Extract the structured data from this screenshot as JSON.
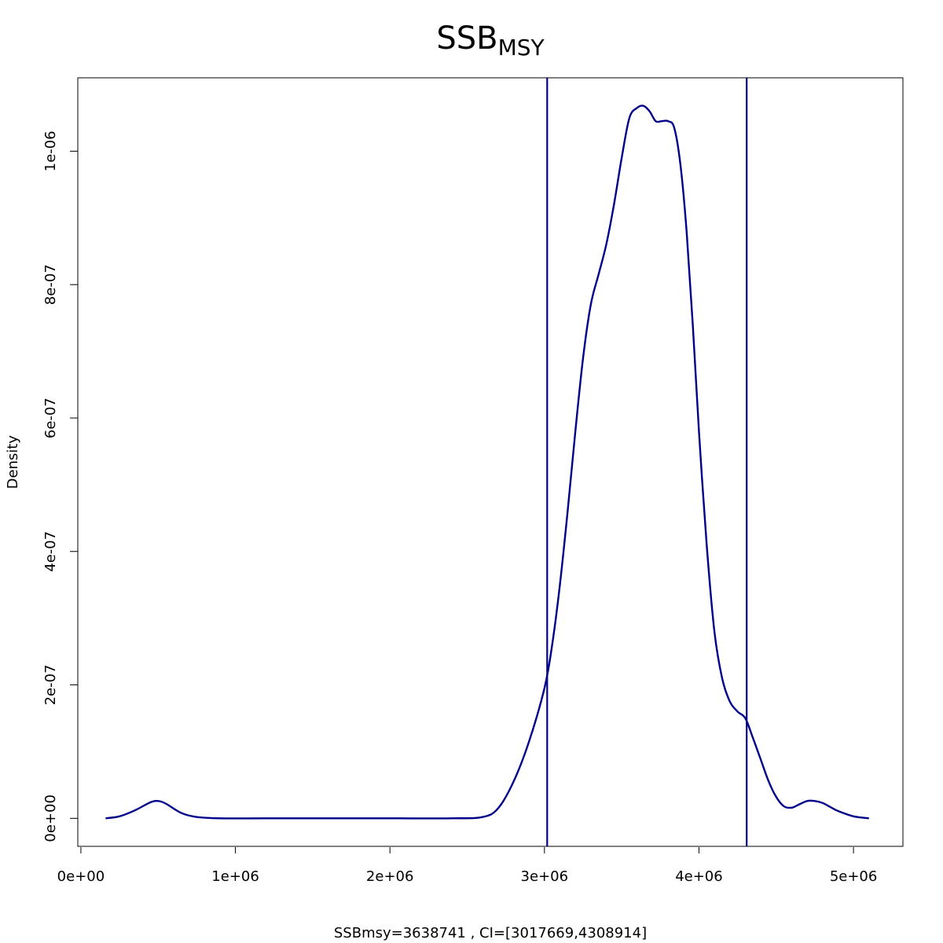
{
  "chart_data": {
    "type": "line",
    "title": "SSB",
    "title_subscript": "MSY",
    "xlabel": "SSBmsy=3638741 , CI=[3017669,4308914]",
    "ylabel": "Density",
    "xlim": [
      -20000,
      5320000
    ],
    "ylim": [
      -4.2e-08,
      1.11e-06
    ],
    "x_ticks": [
      {
        "value": 0,
        "label": "0e+00"
      },
      {
        "value": 1000000,
        "label": "1e+06"
      },
      {
        "value": 2000000,
        "label": "2e+06"
      },
      {
        "value": 3000000,
        "label": "3e+06"
      },
      {
        "value": 4000000,
        "label": "4e+06"
      },
      {
        "value": 5000000,
        "label": "5e+06"
      }
    ],
    "y_ticks": [
      {
        "value": 0,
        "label": "0e+00"
      },
      {
        "value": 2e-07,
        "label": "2e-07"
      },
      {
        "value": 4e-07,
        "label": "4e-07"
      },
      {
        "value": 6e-07,
        "label": "6e-07"
      },
      {
        "value": 8e-07,
        "label": "8e-07"
      },
      {
        "value": 1e-06,
        "label": "1e-06"
      }
    ],
    "series": [
      {
        "color": "#00008b",
        "x": [
          160000,
          250000,
          350000,
          450000,
          500000,
          550000,
          650000,
          750000,
          900000,
          1200000,
          1600000,
          2000000,
          2400000,
          2600000,
          2700000,
          2800000,
          2900000,
          3000000,
          3050000,
          3100000,
          3150000,
          3200000,
          3250000,
          3300000,
          3350000,
          3400000,
          3450000,
          3500000,
          3550000,
          3600000,
          3640000,
          3680000,
          3720000,
          3760000,
          3800000,
          3840000,
          3880000,
          3920000,
          3960000,
          4000000,
          4050000,
          4100000,
          4150000,
          4200000,
          4250000,
          4300000,
          4350000,
          4400000,
          4450000,
          4500000,
          4550000,
          4600000,
          4650000,
          4700000,
          4750000,
          4800000,
          4850000,
          4900000,
          5000000,
          5100000
        ],
        "y": [
          0,
          3e-09,
          1.2e-08,
          2.4e-08,
          2.6e-08,
          2.2e-08,
          8e-09,
          2e-09,
          0,
          0,
          0,
          0,
          0,
          2e-09,
          1.5e-08,
          5.5e-08,
          1.15e-07,
          1.95e-07,
          2.6e-07,
          3.5e-07,
          4.6e-07,
          5.8e-07,
          6.9e-07,
          7.7e-07,
          8.15e-07,
          8.6e-07,
          9.2e-07,
          9.9e-07,
          1.05e-06,
          1.065e-06,
          1.068e-06,
          1.06e-06,
          1.045e-06,
          1.045e-06,
          1.045e-06,
          1.035e-06,
          9.8e-07,
          8.8e-07,
          7.4e-07,
          5.8e-07,
          4.1e-07,
          2.8e-07,
          2.1e-07,
          1.75e-07,
          1.6e-07,
          1.5e-07,
          1.2e-07,
          8.8e-08,
          5.6e-08,
          3.2e-08,
          1.8e-08,
          1.6e-08,
          2.1e-08,
          2.6e-08,
          2.6e-08,
          2.3e-08,
          1.7e-08,
          1.1e-08,
          3e-09,
          0
        ]
      }
    ],
    "vlines": [
      {
        "value": 3017669,
        "color": "#00008b"
      },
      {
        "value": 4308914,
        "color": "#00008b"
      }
    ],
    "grid": false
  }
}
